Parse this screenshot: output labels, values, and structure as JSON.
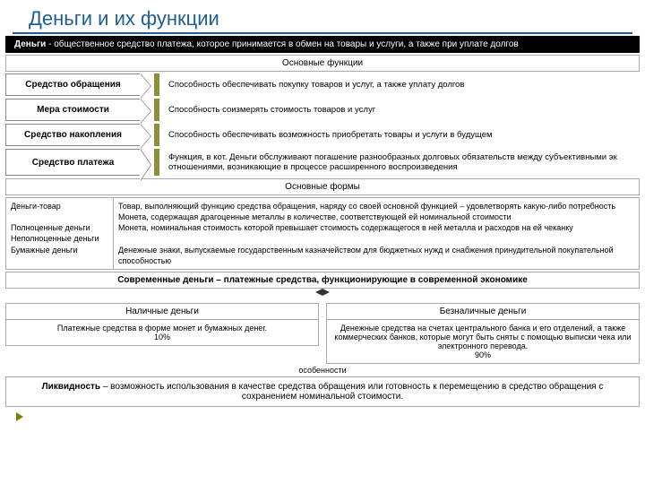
{
  "title": "Деньги и их функции",
  "definition_bold": "Деньги",
  "definition_rest": " - общественное средство платежа, которое принимается в обмен на товары и услуги, а также при уплате долгов",
  "main_functions_header": "Основные функции",
  "functions": [
    {
      "name": "Средство обращения",
      "desc": "Способность обеспечивать покупку товаров и услуг, а также уплату долгов"
    },
    {
      "name": "Мера стоимости",
      "desc": "Способность соизмерять стоимость товаров и услуг"
    },
    {
      "name": "Средство накопления",
      "desc": "Способность обеспечивать возможность приобретать товары и услуги в будущем"
    },
    {
      "name": "Средство платежа",
      "desc": "Функция, в кот. Деньги обслуживают погашение разнообразных долговых обязательств между субъективными эк отношениями,  возникающие в процессе расширенного воспроизведения"
    }
  ],
  "main_forms_header": "Основные формы",
  "form_terms": "Деньги-товар\n\nПолноценные деньги\nНеполноценные деньги\nБумажные деньги",
  "form_defs": "Товар, выполняющий функцию средства обращения, наряду со своей основной функцией – удовлетворять какую-либо потребность\nМонета, содержащая драгоценные металлы в количестве, соответствующей ей номинальной стоимости\nМонета, номинальная стоимость которой превышает стоимость содержащегося в ней металла и расходов на ей чеканку\n\nДенежные знаки, выпускаемые государственным казначейством для бюджетных нужд и снабжения принудительной покупательной способностью",
  "modern_money": "Современные деньги – платежные средства, функционирующие в современной экономике",
  "cash_header": "Наличные деньги",
  "cash_body": "Платежные средства в форме монет и бумажных денег.\n10%",
  "noncash_header": "Безналичные деньги",
  "noncash_body": "Денежные средства на счетах центрального банка и его отделений, а также коммерческих банков, которые могут быть сняты с помощью выписки чека или электронного перевода.\n90%",
  "features_label": "особенности",
  "liquidity_bold": "Ликвидность",
  "liquidity_rest": " – возможность использования в качестве средства обращения или готовность к перемещению в средство обращения с сохранением номинальной стоимости.",
  "colors": {
    "accent": "#1f6091",
    "olive": "#8a8f3c",
    "border": "#aaaaaa"
  }
}
